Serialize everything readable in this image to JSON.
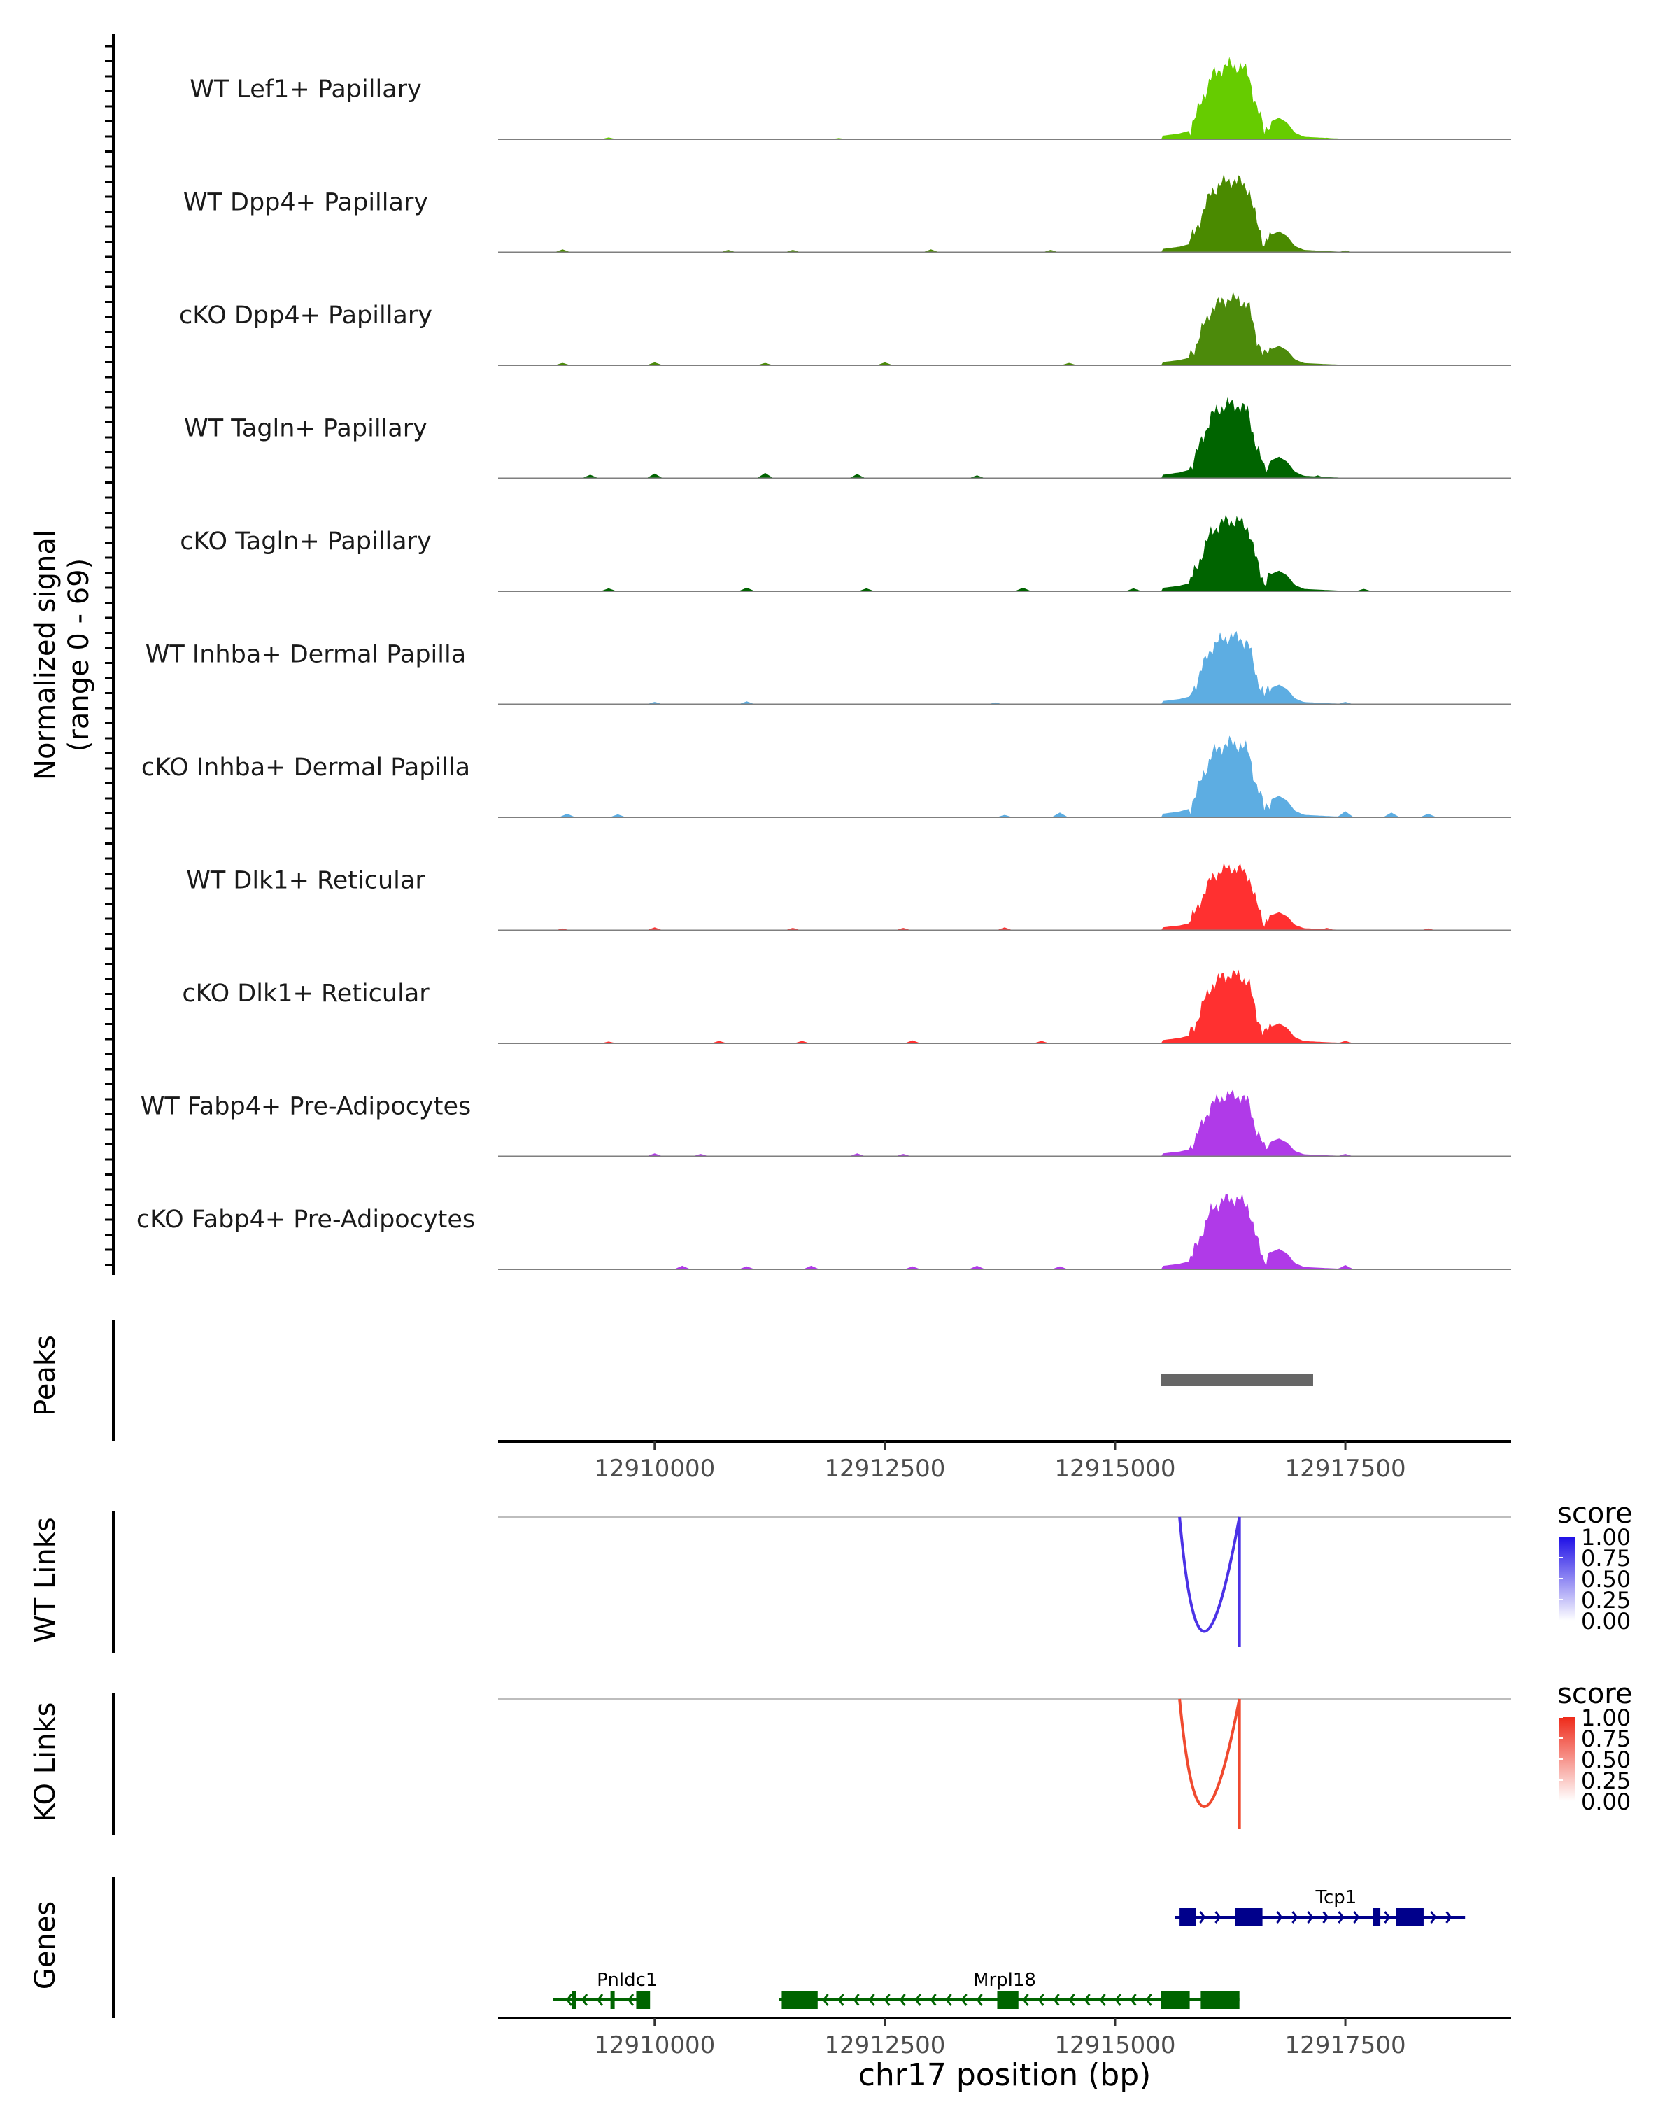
{
  "chart_data": {
    "type": "area",
    "genome": {
      "chromosome": "chr17",
      "xlim": [
        12908300,
        12919300
      ],
      "ticks": [
        12910000,
        12912500,
        12915000,
        12917500
      ],
      "tick_labels": [
        "12910000",
        "12912500",
        "12915000",
        "12917500"
      ],
      "xlabel": "chr17 position (bp)"
    },
    "coverage": {
      "ylabel_line1": "Normalized signal",
      "ylabel_line2": "(range 0 - 69)",
      "ylim": [
        0,
        69
      ],
      "peak_shape": [
        [
          12915500,
          0.04
        ],
        [
          12915700,
          0.07
        ],
        [
          12915800,
          0.1
        ],
        [
          12915880,
          0.28
        ],
        [
          12915950,
          0.5
        ],
        [
          12916050,
          0.76
        ],
        [
          12916150,
          0.86
        ],
        [
          12916250,
          0.9
        ],
        [
          12916350,
          0.88
        ],
        [
          12916450,
          0.8
        ],
        [
          12916530,
          0.4
        ],
        [
          12916620,
          0.12
        ],
        [
          12916700,
          0.22
        ],
        [
          12916780,
          0.26
        ],
        [
          12916870,
          0.2
        ],
        [
          12916950,
          0.08
        ],
        [
          12917050,
          0.03
        ],
        [
          12917300,
          0.015
        ],
        [
          12917600,
          0.0
        ]
      ],
      "tracks": [
        {
          "label": "WT Lef1+ Papillary",
          "color": "#66CC00",
          "peak": 69,
          "spikes": [
            [
              12909500,
              1.5
            ],
            [
              12912000,
              1.0
            ],
            [
              12917300,
              1.2
            ]
          ]
        },
        {
          "label": "WT Dpp4+ Papillary",
          "color": "#4A8A00",
          "peak": 67,
          "spikes": [
            [
              12909000,
              2.5
            ],
            [
              12910800,
              2.0
            ],
            [
              12911500,
              2.0
            ],
            [
              12913000,
              2.5
            ],
            [
              12914300,
              2.0
            ],
            [
              12917500,
              1.5
            ]
          ]
        },
        {
          "label": "cKO Dpp4+ Papillary",
          "color": "#4C8A0B",
          "peak": 62,
          "spikes": [
            [
              12909000,
              2.0
            ],
            [
              12910000,
              2.5
            ],
            [
              12911200,
              2.0
            ],
            [
              12912500,
              2.5
            ],
            [
              12914500,
              2.0
            ],
            [
              12917000,
              1.5
            ]
          ]
        },
        {
          "label": "WT Tagln+ Papillary",
          "color": "#006400",
          "peak": 69,
          "spikes": [
            [
              12909300,
              3.0
            ],
            [
              12910000,
              4.0
            ],
            [
              12911200,
              4.5
            ],
            [
              12912200,
              3.5
            ],
            [
              12913500,
              2.5
            ],
            [
              12917200,
              2.5
            ]
          ]
        },
        {
          "label": "cKO Tagln+ Papillary",
          "color": "#006400",
          "peak": 66,
          "spikes": [
            [
              12909500,
              2.5
            ],
            [
              12911000,
              3.0
            ],
            [
              12912300,
              2.5
            ],
            [
              12914000,
              3.0
            ],
            [
              12915200,
              2.5
            ],
            [
              12917700,
              2.0
            ]
          ]
        },
        {
          "label": "WT Inhba+ Dermal Papilla",
          "color": "#5DADE2",
          "peak": 63,
          "spikes": [
            [
              12910000,
              2.0
            ],
            [
              12911000,
              2.5
            ],
            [
              12913700,
              1.5
            ],
            [
              12917500,
              2.0
            ]
          ]
        },
        {
          "label": "cKO Inhba+ Dermal Papilla",
          "color": "#5DADE2",
          "peak": 69,
          "spikes": [
            [
              12909050,
              3.0
            ],
            [
              12909600,
              2.5
            ],
            [
              12913800,
              2.0
            ],
            [
              12914400,
              4.0
            ],
            [
              12917500,
              5.0
            ],
            [
              12918000,
              4.0
            ],
            [
              12918400,
              3.0
            ]
          ]
        },
        {
          "label": "WT Dlk1+ Reticular",
          "color": "#FF3030",
          "peak": 58,
          "spikes": [
            [
              12909000,
              1.5
            ],
            [
              12910000,
              2.5
            ],
            [
              12911500,
              2.0
            ],
            [
              12912700,
              2.0
            ],
            [
              12913800,
              2.5
            ],
            [
              12917300,
              2.0
            ],
            [
              12918400,
              1.5
            ]
          ]
        },
        {
          "label": "cKO Dlk1+ Reticular",
          "color": "#FF3030",
          "peak": 64,
          "spikes": [
            [
              12909500,
              1.5
            ],
            [
              12910700,
              2.0
            ],
            [
              12911600,
              2.0
            ],
            [
              12912800,
              2.5
            ],
            [
              12914200,
              2.0
            ],
            [
              12917500,
              2.0
            ]
          ]
        },
        {
          "label": "WT Fabp4+ Pre-Adipocytes",
          "color": "#B03AE8",
          "peak": 57,
          "spikes": [
            [
              12910000,
              2.5
            ],
            [
              12910500,
              2.0
            ],
            [
              12912200,
              2.5
            ],
            [
              12912700,
              2.0
            ],
            [
              12917500,
              2.0
            ]
          ]
        },
        {
          "label": "cKO Fabp4+ Pre-Adipocytes",
          "color": "#B03AE8",
          "peak": 66,
          "spikes": [
            [
              12910300,
              3.0
            ],
            [
              12911000,
              2.5
            ],
            [
              12911700,
              3.0
            ],
            [
              12912800,
              2.5
            ],
            [
              12913500,
              3.0
            ],
            [
              12914400,
              2.5
            ],
            [
              12917500,
              3.5
            ]
          ]
        }
      ]
    },
    "peaks": {
      "label": "Peaks",
      "regions": [
        {
          "start": 12915500,
          "end": 12917150
        }
      ]
    },
    "links": [
      {
        "label": "WT Links",
        "color": "#4B32E6",
        "start": 12915700,
        "end": 12916350,
        "score": 0.85,
        "legend_title": "score",
        "legend_ticks": [
          "1.00",
          "0.75",
          "0.50",
          "0.25",
          "0.00"
        ],
        "gradient_top": "#1E0FE6"
      },
      {
        "label": "KO Links",
        "color": "#F04A2F",
        "start": 12915700,
        "end": 12916350,
        "score": 0.8,
        "legend_title": "score",
        "legend_ticks": [
          "1.00",
          "0.75",
          "0.50",
          "0.25",
          "0.00"
        ],
        "gradient_top": "#EE2A1A"
      }
    ],
    "genes": {
      "label": "Genes",
      "items": [
        {
          "name": "Tcp1",
          "strand": "+",
          "row": 0,
          "color": "#00008B",
          "start": 12915650,
          "end": 12918800,
          "exons": [
            [
              12915700,
              12915880
            ],
            [
              12916300,
              12916600
            ],
            [
              12917800,
              12917880
            ],
            [
              12918050,
              12918350
            ]
          ]
        },
        {
          "name": "Pnldc1",
          "strand": "-",
          "row": 1,
          "color": "#006400",
          "start": 12908900,
          "end": 12909930,
          "exons": [
            [
              12909100,
              12909130
            ],
            [
              12909520,
              12909550
            ],
            [
              12909800,
              12909950
            ]
          ]
        },
        {
          "name": "Mrpl18",
          "strand": "-",
          "row": 1,
          "color": "#006400",
          "start": 12911350,
          "end": 12916350,
          "exons": [
            [
              12911380,
              12911770
            ],
            [
              12913720,
              12913950
            ],
            [
              12915500,
              12915810
            ],
            [
              12915930,
              12916350
            ]
          ]
        }
      ]
    }
  }
}
